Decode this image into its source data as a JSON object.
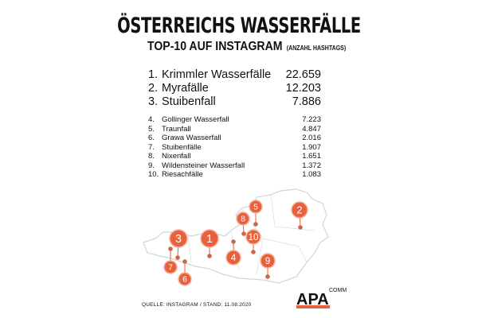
{
  "header": {
    "title": "ÖSTERREICHS WASSERFÄLLE",
    "subtitle": "TOP-10 AUF INSTAGRAM",
    "subtitle_note": "(ANZAHL HASHTAGS)"
  },
  "ranking": [
    {
      "rank": "1.",
      "name": "Krimmler Wasserfälle",
      "value": "22.659"
    },
    {
      "rank": "2.",
      "name": "Myrafälle",
      "value": "12.203"
    },
    {
      "rank": "3.",
      "name": "Stuibenfall",
      "value": "7.886"
    },
    {
      "rank": "4.",
      "name": "Gollinger Wasserfall",
      "value": "7.223"
    },
    {
      "rank": "5.",
      "name": "Traunfall",
      "value": "4.847"
    },
    {
      "rank": "6.",
      "name": "Grawa Wasserfall",
      "value": "2.016"
    },
    {
      "rank": "7.",
      "name": "Stuibenfälle",
      "value": "1.907"
    },
    {
      "rank": "8.",
      "name": "Nixenfall",
      "value": "1.651"
    },
    {
      "rank": "9.",
      "name": "Wildensteiner Wasserfall",
      "value": "1.372"
    },
    {
      "rank": "10.",
      "name": "Riesachfälle",
      "value": "1.083"
    }
  ],
  "map": {
    "markers": [
      "1",
      "2",
      "3",
      "4",
      "5",
      "6",
      "7",
      "8",
      "9",
      "10"
    ],
    "marker_color": "#e8613c"
  },
  "footer": {
    "source": "QUELLE: INSTAGRAM / STAND: 11.08.2020",
    "logo": "APA",
    "logo_suffix": "COMM"
  }
}
